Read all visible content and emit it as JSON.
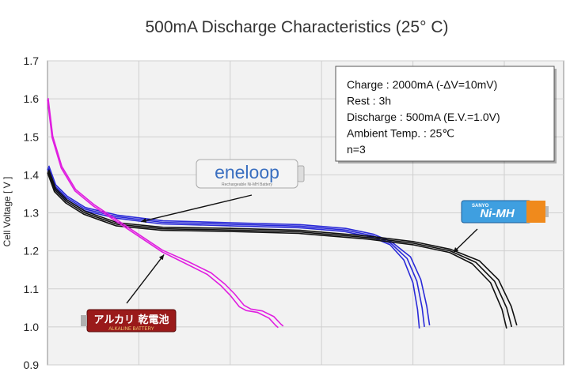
{
  "chart_data": {
    "type": "line",
    "title": "500mA Discharge Characteristics (25° C)",
    "ylabel": "Cell Voltage [ V ]",
    "xlabel": "",
    "ylim": [
      0.9,
      1.7
    ],
    "yticks": [
      "1.7",
      "1.6",
      "1.5",
      "1.4",
      "1.3",
      "1.2",
      "1.1",
      "1.0",
      "0.9"
    ],
    "grid": true,
    "conditions": [
      "Charge : 2000mA (-ΔV=10mV)",
      "Rest : 3h",
      "Discharge : 500mA (E.V.=1.0V)",
      "Ambient Temp. : 25℃",
      "n=3"
    ],
    "series": [
      {
        "name": "eneloop",
        "label_text": "eneloop",
        "label_subtext": "Rechargeable Ni-MH Battery",
        "color": "#2a2ad8",
        "runs": 3,
        "points": [
          [
            0,
            1.42
          ],
          [
            0.15,
            1.37
          ],
          [
            0.4,
            1.34
          ],
          [
            0.8,
            1.31
          ],
          [
            1.5,
            1.29
          ],
          [
            2.5,
            1.275
          ],
          [
            4,
            1.27
          ],
          [
            5.5,
            1.265
          ],
          [
            6.5,
            1.255
          ],
          [
            7.1,
            1.24
          ],
          [
            7.5,
            1.22
          ],
          [
            7.8,
            1.18
          ],
          [
            8.0,
            1.12
          ],
          [
            8.1,
            1.05
          ],
          [
            8.14,
            1.0
          ]
        ]
      },
      {
        "name": "SANYO Ni-MH",
        "label_text": "Ni-MH",
        "label_subtext": "SANYO",
        "color": "#111111",
        "runs": 3,
        "points": [
          [
            0,
            1.41
          ],
          [
            0.15,
            1.36
          ],
          [
            0.4,
            1.33
          ],
          [
            0.8,
            1.3
          ],
          [
            1.5,
            1.27
          ],
          [
            2.5,
            1.258
          ],
          [
            4,
            1.255
          ],
          [
            5.5,
            1.25
          ],
          [
            7,
            1.235
          ],
          [
            8,
            1.22
          ],
          [
            8.8,
            1.2
          ],
          [
            9.3,
            1.17
          ],
          [
            9.7,
            1.12
          ],
          [
            9.95,
            1.05
          ],
          [
            10.05,
            1.0
          ]
        ]
      },
      {
        "name": "Alkaline",
        "label_text": "アルカリ 乾電池",
        "label_subtext": "ALKALINE BATTERY",
        "color": "#e01ee0",
        "runs": 2,
        "points": [
          [
            0,
            1.6
          ],
          [
            0.1,
            1.5
          ],
          [
            0.3,
            1.42
          ],
          [
            0.6,
            1.36
          ],
          [
            1.0,
            1.32
          ],
          [
            1.5,
            1.28
          ],
          [
            2.0,
            1.24
          ],
          [
            2.5,
            1.2
          ],
          [
            3.0,
            1.17
          ],
          [
            3.5,
            1.14
          ],
          [
            3.8,
            1.11
          ],
          [
            4.0,
            1.085
          ],
          [
            4.2,
            1.055
          ],
          [
            4.35,
            1.045
          ],
          [
            4.6,
            1.04
          ],
          [
            4.85,
            1.025
          ],
          [
            5.0,
            1.005
          ],
          [
            5.05,
            1.0
          ]
        ]
      }
    ]
  }
}
